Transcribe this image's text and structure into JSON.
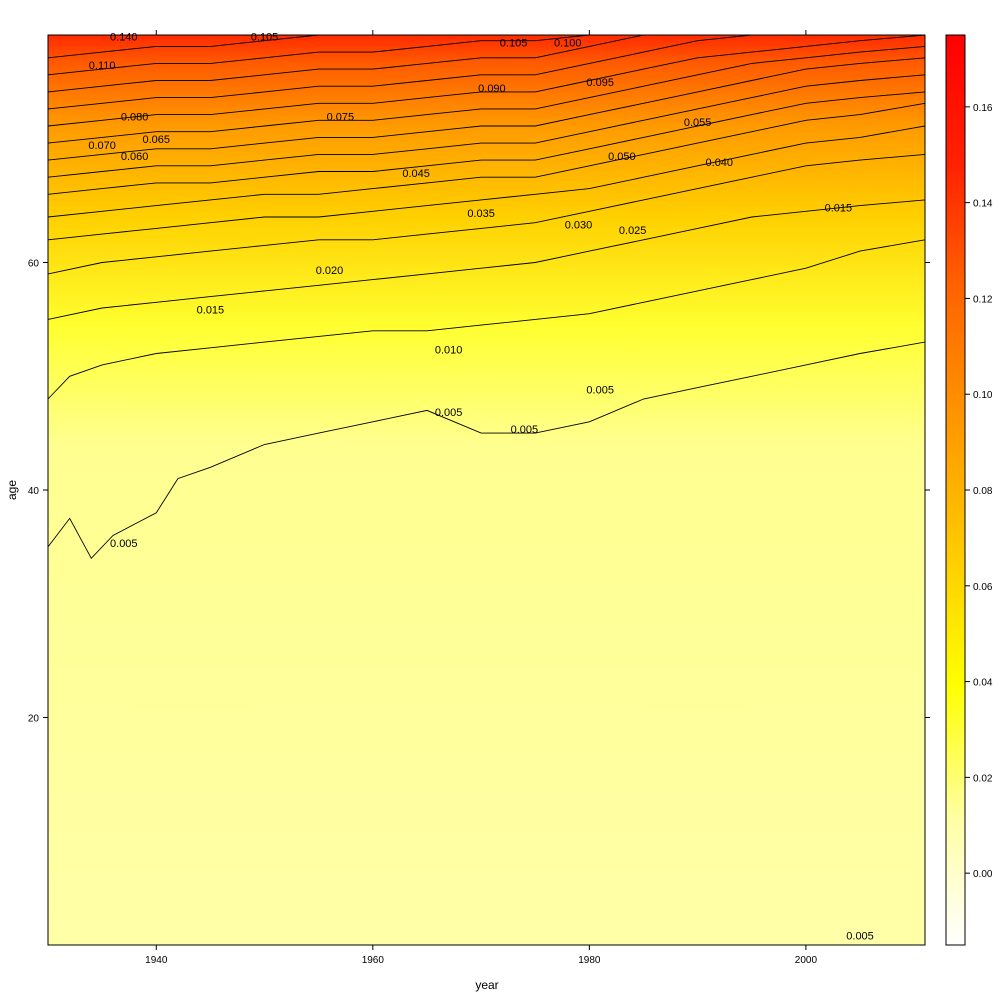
{
  "chart_data": {
    "type": "heatmap",
    "subtype": "filled-contour",
    "xlabel": "year",
    "ylabel": "age",
    "xlim": [
      1930,
      2011
    ],
    "ylim": [
      0,
      80
    ],
    "x_ticks": [
      1940,
      1960,
      1980,
      2000
    ],
    "y_ticks": [
      20,
      40,
      60
    ],
    "colorbar": {
      "range": [
        -0.015,
        0.175
      ],
      "ticks": [
        "0.00",
        "0.02",
        "0.04",
        "0.06",
        "0.08",
        "0.10",
        "0.12",
        "0.14",
        "0.16"
      ],
      "tick_values": [
        0.0,
        0.02,
        0.04,
        0.06,
        0.08,
        0.1,
        0.12,
        0.14,
        0.16
      ],
      "colors": [
        "#ffffff",
        "#ffffa0",
        "#ffff00",
        "#ffcc00",
        "#ff9900",
        "#ff6600",
        "#ff2200",
        "#ff0000"
      ]
    },
    "contour_levels": [
      0.005,
      0.01,
      0.015,
      0.02,
      0.025,
      0.03,
      0.035,
      0.04,
      0.045,
      0.05,
      0.055,
      0.06,
      0.07,
      0.075,
      0.08,
      0.09,
      0.095,
      0.14
    ],
    "contour_curves": [
      {
        "level": 0.005,
        "points": [
          [
            1930,
            35
          ],
          [
            1932,
            37.5
          ],
          [
            1934,
            34
          ],
          [
            1936,
            36
          ],
          [
            1938,
            37
          ],
          [
            1940,
            38
          ],
          [
            1942,
            41
          ],
          [
            1945,
            42
          ],
          [
            1950,
            44
          ],
          [
            1955,
            45
          ],
          [
            1960,
            46
          ],
          [
            1965,
            47
          ],
          [
            1970,
            45
          ],
          [
            1975,
            45
          ],
          [
            1980,
            46
          ],
          [
            1985,
            48
          ],
          [
            1990,
            49
          ],
          [
            1995,
            50
          ],
          [
            2000,
            51
          ],
          [
            2005,
            52
          ],
          [
            2011,
            53
          ]
        ]
      },
      {
        "level": 0.01,
        "points": [
          [
            1930,
            48
          ],
          [
            1932,
            50
          ],
          [
            1935,
            51
          ],
          [
            1940,
            52
          ],
          [
            1945,
            52.5
          ],
          [
            1950,
            53
          ],
          [
            1955,
            53.5
          ],
          [
            1960,
            54
          ],
          [
            1965,
            54
          ],
          [
            1970,
            54.5
          ],
          [
            1975,
            55
          ],
          [
            1980,
            55.5
          ],
          [
            1985,
            56.5
          ],
          [
            1990,
            57.5
          ],
          [
            1995,
            58.5
          ],
          [
            2000,
            59.5
          ],
          [
            2005,
            61
          ],
          [
            2011,
            62
          ]
        ]
      },
      {
        "level": 0.015,
        "points": [
          [
            1930,
            55
          ],
          [
            1935,
            56
          ],
          [
            1940,
            56.5
          ],
          [
            1945,
            57
          ],
          [
            1950,
            57.5
          ],
          [
            1955,
            58
          ],
          [
            1960,
            58.5
          ],
          [
            1965,
            59
          ],
          [
            1970,
            59.5
          ],
          [
            1975,
            60
          ],
          [
            1980,
            61
          ],
          [
            1985,
            62
          ],
          [
            1990,
            63
          ],
          [
            1995,
            64
          ],
          [
            2000,
            64.5
          ],
          [
            2005,
            65
          ],
          [
            2011,
            65.5
          ]
        ]
      },
      {
        "level": 0.02,
        "points": [
          [
            1930,
            59
          ],
          [
            1935,
            60
          ],
          [
            1940,
            60.5
          ],
          [
            1945,
            61
          ],
          [
            1950,
            61.5
          ],
          [
            1955,
            62
          ],
          [
            1960,
            62
          ],
          [
            1965,
            62.5
          ],
          [
            1970,
            63
          ],
          [
            1975,
            63.5
          ],
          [
            1980,
            64.5
          ],
          [
            1985,
            65.5
          ],
          [
            1990,
            66.5
          ],
          [
            1995,
            67.5
          ],
          [
            2000,
            68.5
          ],
          [
            2005,
            69
          ],
          [
            2011,
            69.5
          ]
        ]
      },
      {
        "level": 0.025,
        "points": [
          [
            1930,
            62
          ],
          [
            1935,
            62.5
          ],
          [
            1940,
            63
          ],
          [
            1945,
            63.5
          ],
          [
            1950,
            64
          ],
          [
            1955,
            64
          ],
          [
            1960,
            64.5
          ],
          [
            1965,
            65
          ],
          [
            1970,
            65.5
          ],
          [
            1975,
            66
          ],
          [
            1980,
            66.5
          ],
          [
            1985,
            67.5
          ],
          [
            1990,
            68.5
          ],
          [
            1995,
            69.5
          ],
          [
            2000,
            70.5
          ],
          [
            2005,
            71
          ],
          [
            2011,
            72
          ]
        ]
      },
      {
        "level": 0.03,
        "points": [
          [
            1930,
            64
          ],
          [
            1935,
            64.5
          ],
          [
            1940,
            65
          ],
          [
            1945,
            65.5
          ],
          [
            1950,
            66
          ],
          [
            1955,
            66
          ],
          [
            1960,
            66.5
          ],
          [
            1965,
            67
          ],
          [
            1970,
            67.5
          ],
          [
            1975,
            67.5
          ],
          [
            1980,
            68.5
          ],
          [
            1985,
            69.5
          ],
          [
            1990,
            70.5
          ],
          [
            1995,
            71.5
          ],
          [
            2000,
            72.5
          ],
          [
            2005,
            73
          ],
          [
            2011,
            74
          ]
        ]
      },
      {
        "level": 0.035,
        "points": [
          [
            1930,
            66
          ],
          [
            1935,
            66.5
          ],
          [
            1940,
            67
          ],
          [
            1945,
            67
          ],
          [
            1950,
            67.5
          ],
          [
            1955,
            68
          ],
          [
            1960,
            68
          ],
          [
            1965,
            68.5
          ],
          [
            1970,
            69
          ],
          [
            1975,
            69
          ],
          [
            1980,
            70
          ],
          [
            1985,
            71
          ],
          [
            1990,
            72
          ],
          [
            1995,
            73
          ],
          [
            2000,
            74
          ],
          [
            2005,
            74.5
          ],
          [
            2011,
            75
          ]
        ]
      },
      {
        "level": 0.04,
        "points": [
          [
            1930,
            67.5
          ],
          [
            1935,
            68
          ],
          [
            1940,
            68.5
          ],
          [
            1945,
            68.5
          ],
          [
            1950,
            69
          ],
          [
            1955,
            69.5
          ],
          [
            1960,
            69.5
          ],
          [
            1965,
            70
          ],
          [
            1970,
            70.5
          ],
          [
            1975,
            70.5
          ],
          [
            1980,
            71.5
          ],
          [
            1985,
            72.5
          ],
          [
            1990,
            73.5
          ],
          [
            1995,
            74.5
          ],
          [
            2000,
            75.5
          ],
          [
            2005,
            76
          ],
          [
            2011,
            76.5
          ]
        ]
      },
      {
        "level": 0.045,
        "points": [
          [
            1930,
            69
          ],
          [
            1935,
            69.5
          ],
          [
            1940,
            70
          ],
          [
            1945,
            70
          ],
          [
            1950,
            70.5
          ],
          [
            1955,
            71
          ],
          [
            1960,
            71
          ],
          [
            1965,
            71.5
          ],
          [
            1970,
            72
          ],
          [
            1975,
            72
          ],
          [
            1980,
            73
          ],
          [
            1985,
            74
          ],
          [
            1990,
            75
          ],
          [
            1995,
            76
          ],
          [
            2000,
            77
          ],
          [
            2005,
            77.5
          ],
          [
            2011,
            78
          ]
        ]
      },
      {
        "level": 0.05,
        "points": [
          [
            1930,
            70.5
          ],
          [
            1935,
            71
          ],
          [
            1940,
            71.5
          ],
          [
            1945,
            71.5
          ],
          [
            1950,
            72
          ],
          [
            1955,
            72.5
          ],
          [
            1960,
            72.5
          ],
          [
            1965,
            73
          ],
          [
            1970,
            73.5
          ],
          [
            1975,
            73.5
          ],
          [
            1980,
            74.5
          ],
          [
            1985,
            75.5
          ],
          [
            1990,
            76.5
          ],
          [
            1995,
            77.5
          ],
          [
            2000,
            78
          ],
          [
            2005,
            78.5
          ],
          [
            2011,
            79
          ]
        ]
      },
      {
        "level": 0.055,
        "points": [
          [
            1930,
            72
          ],
          [
            1935,
            72.5
          ],
          [
            1940,
            73
          ],
          [
            1945,
            73
          ],
          [
            1950,
            73.5
          ],
          [
            1955,
            74
          ],
          [
            1960,
            74
          ],
          [
            1965,
            74.5
          ],
          [
            1970,
            75
          ],
          [
            1975,
            75
          ],
          [
            1980,
            76
          ],
          [
            1985,
            77
          ],
          [
            1990,
            78
          ],
          [
            1995,
            78.5
          ],
          [
            2000,
            79
          ],
          [
            2005,
            79.5
          ],
          [
            2011,
            80
          ]
        ]
      },
      {
        "level": 0.06,
        "points": [
          [
            1930,
            73.5
          ],
          [
            1935,
            74
          ],
          [
            1940,
            74.5
          ],
          [
            1945,
            74.5
          ],
          [
            1950,
            75
          ],
          [
            1955,
            75.5
          ],
          [
            1960,
            75.5
          ],
          [
            1965,
            76
          ],
          [
            1970,
            76.5
          ],
          [
            1975,
            76.5
          ],
          [
            1980,
            77.5
          ],
          [
            1985,
            78.5
          ],
          [
            1990,
            79.5
          ],
          [
            1995,
            80
          ]
        ]
      },
      {
        "level": 0.07,
        "points": [
          [
            1930,
            75
          ],
          [
            1935,
            75.5
          ],
          [
            1940,
            76
          ],
          [
            1945,
            76
          ],
          [
            1950,
            76.5
          ],
          [
            1955,
            77
          ],
          [
            1960,
            77
          ],
          [
            1965,
            77.5
          ],
          [
            1970,
            78
          ],
          [
            1975,
            78
          ],
          [
            1980,
            79
          ],
          [
            1985,
            80
          ]
        ]
      },
      {
        "level": 0.08,
        "points": [
          [
            1930,
            76.5
          ],
          [
            1935,
            77
          ],
          [
            1940,
            77.5
          ],
          [
            1945,
            77.5
          ],
          [
            1950,
            78
          ],
          [
            1955,
            78.5
          ],
          [
            1960,
            78.5
          ],
          [
            1965,
            79
          ],
          [
            1970,
            79.5
          ],
          [
            1975,
            79.5
          ],
          [
            1980,
            80
          ]
        ]
      },
      {
        "level": 0.09,
        "points": [
          [
            1930,
            78
          ],
          [
            1935,
            78.5
          ],
          [
            1940,
            79
          ],
          [
            1945,
            79
          ],
          [
            1950,
            79.5
          ],
          [
            1955,
            80
          ],
          [
            1960,
            80
          ]
        ]
      }
    ],
    "contour_labels": [
      {
        "text": "0.140",
        "x": 1937,
        "y": 79.5
      },
      {
        "text": "0.105",
        "x": 1950,
        "y": 79.5
      },
      {
        "text": "0.105",
        "x": 1973,
        "y": 79
      },
      {
        "text": "0.100",
        "x": 1978,
        "y": 79
      },
      {
        "text": "0.110",
        "x": 1935,
        "y": 77
      },
      {
        "text": "0.090",
        "x": 1971,
        "y": 75
      },
      {
        "text": "0.095",
        "x": 1981,
        "y": 75.5
      },
      {
        "text": "0.080",
        "x": 1938,
        "y": 72.5
      },
      {
        "text": "0.075",
        "x": 1957,
        "y": 72.5
      },
      {
        "text": "0.055",
        "x": 1990,
        "y": 72
      },
      {
        "text": "0.070",
        "x": 1935,
        "y": 70
      },
      {
        "text": "0.065",
        "x": 1940,
        "y": 70.5
      },
      {
        "text": "0.060",
        "x": 1938,
        "y": 69
      },
      {
        "text": "0.050",
        "x": 1983,
        "y": 69
      },
      {
        "text": "0.040",
        "x": 1992,
        "y": 68.5
      },
      {
        "text": "0.045",
        "x": 1964,
        "y": 67.5
      },
      {
        "text": "0.015",
        "x": 2003,
        "y": 64.5
      },
      {
        "text": "0.035",
        "x": 1970,
        "y": 64
      },
      {
        "text": "0.030",
        "x": 1979,
        "y": 63
      },
      {
        "text": "0.025",
        "x": 1984,
        "y": 62.5
      },
      {
        "text": "0.020",
        "x": 1956,
        "y": 59
      },
      {
        "text": "0.015",
        "x": 1945,
        "y": 55.5
      },
      {
        "text": "0.010",
        "x": 1967,
        "y": 52
      },
      {
        "text": "0.005",
        "x": 1981,
        "y": 48.5
      },
      {
        "text": "0.005",
        "x": 1967,
        "y": 46.5
      },
      {
        "text": "0.005",
        "x": 1974,
        "y": 45
      },
      {
        "text": "0.005",
        "x": 1937,
        "y": 35
      },
      {
        "text": "0.005",
        "x": 2005,
        "y": 0.5
      }
    ]
  }
}
